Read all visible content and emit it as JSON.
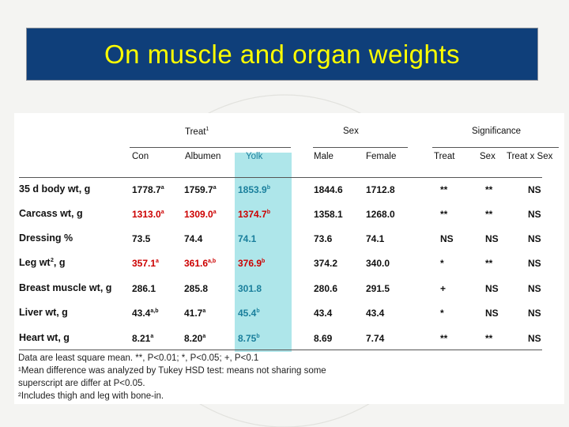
{
  "title": "On muscle and organ weights",
  "group_headers": {
    "treat": "Treat",
    "treat_sup": "1",
    "sex": "Sex",
    "significance": "Significance"
  },
  "col_headers": [
    "Con",
    "Albumen",
    "Yolk",
    "Male",
    "Female",
    "Treat",
    "Sex",
    "Treat x Sex"
  ],
  "rows": [
    {
      "label": "35 d body wt, g",
      "label_sup": "",
      "con": "1778.7",
      "con_sup": "a",
      "alb": "1759.7",
      "alb_sup": "a",
      "yolk": "1853.9",
      "yolk_sup": "b",
      "male": "1844.6",
      "female": "1712.8",
      "s_treat": "**",
      "s_sex": "**",
      "s_int": "NS",
      "color": "black"
    },
    {
      "label": "Carcass wt, g",
      "label_sup": "",
      "con": "1313.0",
      "con_sup": "a",
      "alb": "1309.0",
      "alb_sup": "a",
      "yolk": "1374.7",
      "yolk_sup": "b",
      "male": "1358.1",
      "female": "1268.0",
      "s_treat": "**",
      "s_sex": "**",
      "s_int": "NS",
      "color": "red"
    },
    {
      "label": "Dressing %",
      "label_sup": "",
      "con": "73.5",
      "con_sup": "",
      "alb": "74.4",
      "alb_sup": "",
      "yolk": "74.1",
      "yolk_sup": "",
      "male": "73.6",
      "female": "74.1",
      "s_treat": "NS",
      "s_sex": "NS",
      "s_int": "NS",
      "color": "black"
    },
    {
      "label": "Leg wt",
      "label_sup": "2",
      "label_suffix": ", g",
      "con": "357.1",
      "con_sup": "a",
      "alb": "361.6",
      "alb_sup": "a,b",
      "yolk": "376.9",
      "yolk_sup": "b",
      "male": "374.2",
      "female": "340.0",
      "s_treat": "*",
      "s_sex": "**",
      "s_int": "NS",
      "color": "red"
    },
    {
      "label": "Breast muscle wt, g",
      "label_sup": "",
      "con": "286.1",
      "con_sup": "",
      "alb": "285.8",
      "alb_sup": "",
      "yolk": "301.8",
      "yolk_sup": "",
      "male": "280.6",
      "female": "291.5",
      "s_treat": "+",
      "s_sex": "NS",
      "s_int": "NS",
      "color": "black"
    },
    {
      "label": "Liver wt, g",
      "label_sup": "",
      "con": "43.4",
      "con_sup": "a,b",
      "alb": "41.7",
      "alb_sup": "a",
      "yolk": "45.4",
      "yolk_sup": "b",
      "male": "43.4",
      "female": "43.4",
      "s_treat": "*",
      "s_sex": "NS",
      "s_int": "NS",
      "color": "black"
    },
    {
      "label": "Heart wt, g",
      "label_sup": "",
      "con": "8.21",
      "con_sup": "a",
      "alb": "8.20",
      "alb_sup": "a",
      "yolk": "8.75",
      "yolk_sup": "b",
      "male": "8.69",
      "female": "7.74",
      "s_treat": "**",
      "s_sex": "**",
      "s_int": "NS",
      "color": "black"
    }
  ],
  "footnotes": [
    "Data are least square mean. **, P<0.01; *, P<0.05; +, P<0.1",
    "¹Mean difference was analyzed by Tukey HSD test: means not sharing some",
    "superscript are differ at P<0.05.",
    "²Includes thigh and leg with bone-in."
  ],
  "colors": {
    "title_bg": "#0f3f7a",
    "title_text": "#ffff00",
    "highlight": "#aee6ea",
    "red_text": "#cc0000"
  }
}
